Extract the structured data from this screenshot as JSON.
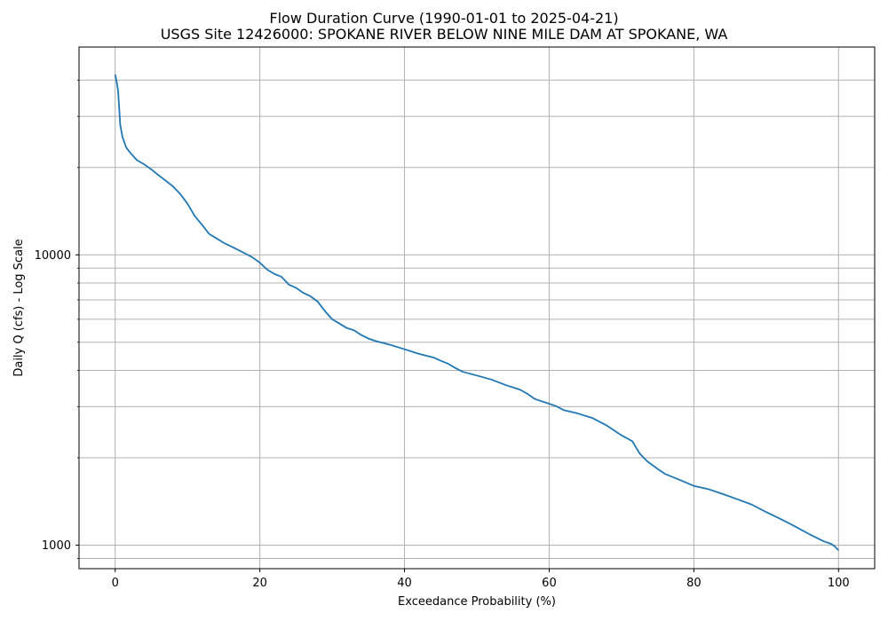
{
  "chart_data": {
    "type": "line",
    "title": "Flow Duration Curve (1990-01-01 to 2025-04-21)",
    "subtitle": "USGS Site 12426000: SPOKANE RIVER BELOW NINE MILE DAM AT SPOKANE, WA",
    "xlabel": "Exceedance Probability (%)",
    "ylabel": "Daily Q (cfs) - Log Scale",
    "xlim": [
      -5,
      105
    ],
    "ylim": [
      830,
      52000
    ],
    "yscale": "log",
    "grid": true,
    "x_ticks": [
      0,
      20,
      40,
      60,
      80,
      100
    ],
    "x_tick_labels": [
      "0",
      "20",
      "40",
      "60",
      "80",
      "100"
    ],
    "y_major_ticks": [
      1000,
      10000
    ],
    "y_major_tick_labels": [
      "1000",
      "10000"
    ],
    "y_minor_ticks": [
      900,
      2000,
      3000,
      4000,
      5000,
      6000,
      7000,
      8000,
      9000,
      20000,
      30000,
      40000
    ],
    "line_color": "#1f77b4",
    "series": [
      {
        "x": [
          0,
          0.2,
          0.4,
          0.7,
          1.0,
          1.5,
          2.0,
          3.0,
          4.0,
          5.0,
          6.0,
          7.0,
          8.0,
          9.0,
          10.0,
          11.0,
          12.0,
          13.0,
          14.0,
          15.0,
          16.0,
          17.0,
          18.0,
          19.0,
          20.0,
          21.0,
          22.0,
          23.0,
          24.0,
          25.0,
          26.0,
          27.0,
          28.0,
          29.0,
          30.0,
          31.0,
          32.0,
          33.0,
          34.0,
          35.0,
          36.0,
          38.0,
          40.0,
          42.0,
          44.0,
          45.0,
          46.0,
          47.0,
          48.0,
          50.0,
          52.0,
          54.0,
          56.0,
          57.0,
          58.0,
          60.0,
          61.0,
          62.0,
          64.0,
          66.0,
          68.0,
          70.0,
          71.5,
          72.5,
          73.5,
          75.0,
          76.0,
          78.0,
          80.0,
          82.0,
          84.0,
          86.0,
          88.0,
          90.0,
          92.0,
          94.0,
          96.0,
          98.0,
          99.0,
          99.5,
          100.0
        ],
        "y": [
          41800,
          39500,
          36800,
          28000,
          25500,
          23500,
          22600,
          21200,
          20500,
          19700,
          18800,
          18000,
          17200,
          16200,
          15000,
          13600,
          12700,
          11800,
          11400,
          11000,
          10700,
          10400,
          10100,
          9800,
          9400,
          8900,
          8600,
          8400,
          7900,
          7700,
          7400,
          7200,
          6900,
          6400,
          6000,
          5800,
          5600,
          5500,
          5300,
          5150,
          5050,
          4900,
          4730,
          4560,
          4430,
          4320,
          4220,
          4080,
          3960,
          3840,
          3720,
          3560,
          3430,
          3320,
          3190,
          3070,
          3010,
          2920,
          2840,
          2740,
          2580,
          2390,
          2280,
          2070,
          1950,
          1830,
          1760,
          1680,
          1600,
          1560,
          1500,
          1440,
          1380,
          1300,
          1230,
          1160,
          1090,
          1030,
          1010,
          990,
          960
        ]
      }
    ]
  }
}
